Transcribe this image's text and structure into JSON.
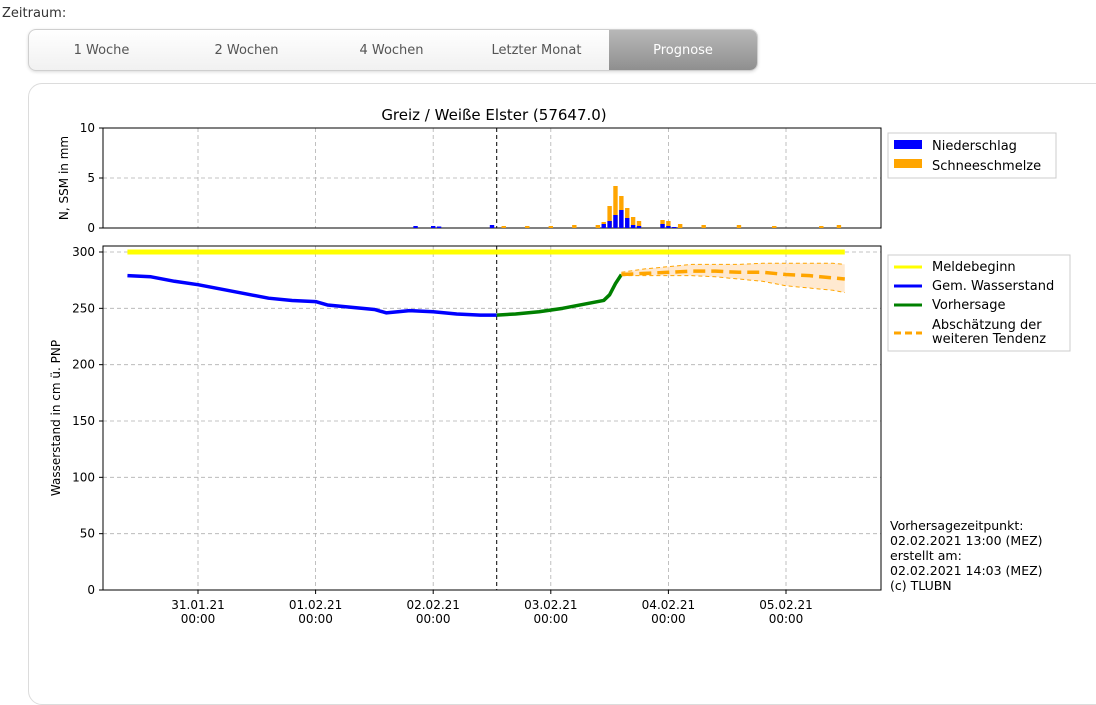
{
  "period": {
    "label": "Zeitraum:",
    "tabs": [
      {
        "label": "1 Woche"
      },
      {
        "label": "2 Wochen"
      },
      {
        "label": "4 Wochen"
      },
      {
        "label": "Letzter Monat"
      },
      {
        "label": "Prognose",
        "active": true
      }
    ]
  },
  "colors": {
    "precip": "#0000ff",
    "snowmelt": "#ffa500",
    "alarm": "#ffff00",
    "measured": "#0000ff",
    "forecast": "#008000",
    "tendency": "#ffa500",
    "band": "#ffe4c4"
  },
  "chart_data": [
    {
      "type": "bar",
      "title": "Greiz / Weiße Elster (57647.0)",
      "ylabel": "N, SSM in mm",
      "ylim": [
        0,
        10
      ],
      "yticks": [
        "0",
        "5",
        "10"
      ],
      "grid": true,
      "legend_position": "right",
      "series": [
        {
          "name": "Niederschlag",
          "color": "#0000ff",
          "points": [
            [
              2.85,
              0.2
            ],
            [
              3.0,
              0.2
            ],
            [
              3.05,
              0.15
            ],
            [
              3.5,
              0.3
            ],
            [
              4.45,
              0.4
            ],
            [
              4.5,
              0.7
            ],
            [
              4.55,
              1.3
            ],
            [
              4.6,
              1.8
            ],
            [
              4.65,
              1.0
            ],
            [
              4.7,
              0.3
            ],
            [
              4.75,
              0.2
            ],
            [
              4.95,
              0.4
            ],
            [
              5.0,
              0.2
            ],
            [
              5.05,
              0.1
            ]
          ]
        },
        {
          "name": "Schneeschmelze",
          "color": "#ffa500",
          "points": [
            [
              3.6,
              0.2
            ],
            [
              3.8,
              0.2
            ],
            [
              4.0,
              0.2
            ],
            [
              4.2,
              0.3
            ],
            [
              4.4,
              0.3
            ],
            [
              4.45,
              0.6
            ],
            [
              4.5,
              2.2
            ],
            [
              4.55,
              4.2
            ],
            [
              4.6,
              3.2
            ],
            [
              4.65,
              2.0
            ],
            [
              4.7,
              1.1
            ],
            [
              4.75,
              0.7
            ],
            [
              4.95,
              0.8
            ],
            [
              5.0,
              0.7
            ],
            [
              5.1,
              0.4
            ],
            [
              5.3,
              0.3
            ],
            [
              5.6,
              0.3
            ],
            [
              5.9,
              0.2
            ],
            [
              6.3,
              0.2
            ],
            [
              6.45,
              0.3
            ]
          ]
        }
      ]
    },
    {
      "type": "line",
      "ylabel": "Wasserstand in cm ü. PNP",
      "ylim": [
        0,
        300
      ],
      "yticks": [
        "0",
        "50",
        "100",
        "150",
        "200",
        "250",
        "300"
      ],
      "xticks": [
        {
          "x": 1,
          "date": "31.01.21",
          "time": "00:00"
        },
        {
          "x": 2,
          "date": "01.02.21",
          "time": "00:00"
        },
        {
          "x": 3,
          "date": "02.02.21",
          "time": "00:00"
        },
        {
          "x": 4,
          "date": "03.02.21",
          "time": "00:00"
        },
        {
          "x": 5,
          "date": "04.02.21",
          "time": "00:00"
        },
        {
          "x": 6,
          "date": "05.02.21",
          "time": "00:00"
        }
      ],
      "grid": true,
      "legend_position": "right",
      "forecast_time_x": 3.54,
      "series": [
        {
          "name": "Meldebeginn",
          "color": "#ffff00",
          "style": "solid",
          "points": [
            [
              0.4,
              300
            ],
            [
              6.5,
              300
            ]
          ]
        },
        {
          "name": "Gem. Wasserstand",
          "color": "#0000ff",
          "style": "solid",
          "points": [
            [
              0.4,
              279
            ],
            [
              0.6,
              278
            ],
            [
              0.8,
              274
            ],
            [
              1.0,
              271
            ],
            [
              1.2,
              267
            ],
            [
              1.4,
              263
            ],
            [
              1.6,
              259
            ],
            [
              1.8,
              257
            ],
            [
              2.0,
              256
            ],
            [
              2.1,
              253
            ],
            [
              2.3,
              251
            ],
            [
              2.5,
              249
            ],
            [
              2.6,
              246
            ],
            [
              2.7,
              247
            ],
            [
              2.8,
              248
            ],
            [
              3.0,
              247
            ],
            [
              3.2,
              245
            ],
            [
              3.4,
              244
            ],
            [
              3.54,
              244
            ]
          ]
        },
        {
          "name": "Vorhersage",
          "color": "#008000",
          "style": "solid",
          "points": [
            [
              3.54,
              244
            ],
            [
              3.7,
              245
            ],
            [
              3.9,
              247
            ],
            [
              4.1,
              250
            ],
            [
              4.3,
              254
            ],
            [
              4.45,
              257
            ],
            [
              4.5,
              262
            ],
            [
              4.55,
              272
            ],
            [
              4.6,
              280
            ]
          ]
        },
        {
          "name": "Abschätzung der weiteren Tendenz",
          "color": "#ffa500",
          "style": "dashed",
          "points": [
            [
              4.6,
              280
            ],
            [
              4.8,
              281
            ],
            [
              5.0,
              282
            ],
            [
              5.2,
              283
            ],
            [
              5.4,
              283
            ],
            [
              5.6,
              282
            ],
            [
              5.8,
              282
            ],
            [
              6.0,
              280
            ],
            [
              6.2,
              279
            ],
            [
              6.4,
              277
            ],
            [
              6.5,
              276
            ]
          ],
          "band_upper": [
            [
              4.6,
              282
            ],
            [
              4.8,
              285
            ],
            [
              5.0,
              287
            ],
            [
              5.2,
              289
            ],
            [
              5.4,
              289
            ],
            [
              5.6,
              289
            ],
            [
              5.8,
              290
            ],
            [
              6.0,
              290
            ],
            [
              6.2,
              290
            ],
            [
              6.4,
              290
            ],
            [
              6.5,
              289
            ]
          ],
          "band_lower": [
            [
              4.6,
              279
            ],
            [
              4.8,
              279
            ],
            [
              5.0,
              279
            ],
            [
              5.2,
              279
            ],
            [
              5.4,
              278
            ],
            [
              5.6,
              276
            ],
            [
              5.8,
              274
            ],
            [
              6.0,
              270
            ],
            [
              6.2,
              268
            ],
            [
              6.4,
              266
            ],
            [
              6.5,
              264
            ]
          ]
        }
      ]
    }
  ],
  "info_text": [
    "Vorhersagezeitpunkt:",
    "02.02.2021 13:00 (MEZ)",
    "erstellt am:",
    "02.02.2021 14:03 (MEZ)",
    "(c) TLUBN"
  ]
}
